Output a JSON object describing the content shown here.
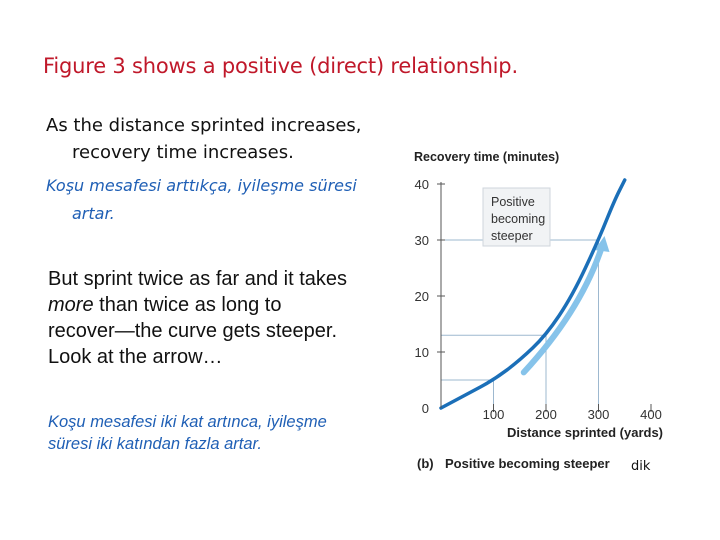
{
  "slide": {
    "title": "Figure 3 shows a positive (direct) relationship.",
    "para_en": {
      "line1": "As the distance sprinted increases,",
      "line2": "recovery time increases."
    },
    "para_tr": {
      "line1": "Koşu mesafesi arttıkça, iyileşme süresi",
      "line2": "artar."
    },
    "body": {
      "part1": "But sprint twice as far and it takes ",
      "emph": "more",
      "part2": " than twice as long to recover—the curve gets steeper. Look at the arrow…"
    },
    "body_tr": "Koşu mesafesi iki kat artınca, iyileşme süresi iki katından fazla artar.",
    "note": "dik"
  },
  "chart_data": {
    "type": "line",
    "title": "Recovery time (minutes)",
    "xlabel": "Distance sprinted (yards)",
    "ylabel": "Recovery time (minutes)",
    "xlim": [
      0,
      400
    ],
    "ylim": [
      0,
      40
    ],
    "x_ticks": [
      "100",
      "200",
      "300",
      "400"
    ],
    "y_ticks": [
      "0",
      "10",
      "20",
      "30",
      "40"
    ],
    "series": [
      {
        "x": [
          0,
          50,
          100,
          150,
          200,
          250,
          300,
          330,
          350
        ],
        "y": [
          0,
          2.5,
          5,
          8.5,
          13,
          20,
          30,
          37,
          42
        ]
      }
    ],
    "guide_points": [
      {
        "x": 100,
        "y": 5
      },
      {
        "x": 200,
        "y": 13
      },
      {
        "x": 300,
        "y": 30
      }
    ],
    "annotation": {
      "lines": [
        "Positive",
        "becoming",
        "steeper"
      ]
    },
    "caption": {
      "label": "(b)",
      "text": "Positive becoming steeper"
    },
    "colors": {
      "curve": "#1b6fb8",
      "arrow": "#86c3ea",
      "guides": "#9db8cf",
      "axis": "#555555",
      "callout_bg": "#f1f3f5"
    }
  }
}
